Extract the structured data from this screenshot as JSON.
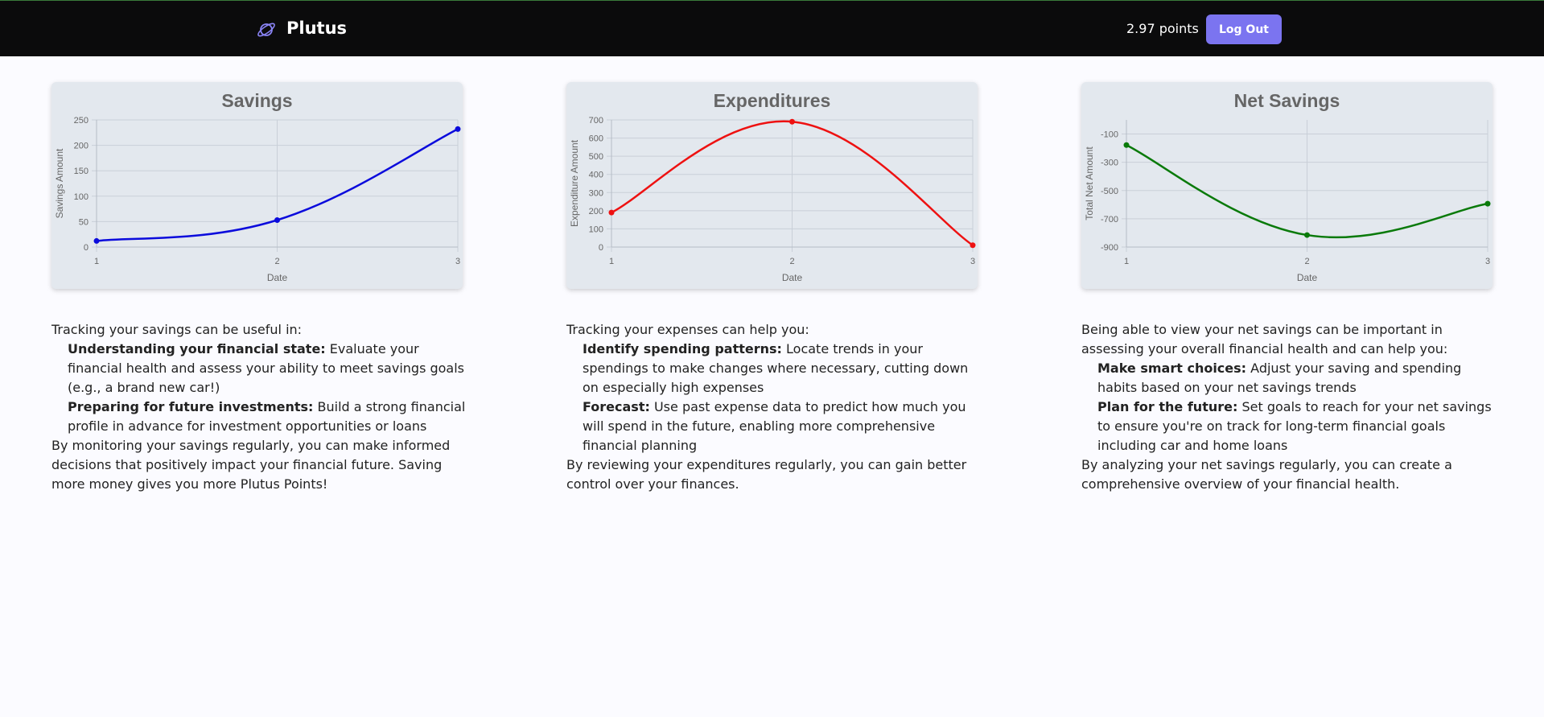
{
  "header": {
    "brand": "Plutus",
    "points": "2.97 points",
    "logout": "Log Out"
  },
  "chart_data": [
    {
      "type": "line",
      "title": "Savings",
      "x_label": "Date",
      "y_label": "Savings Amount",
      "x": [
        1,
        2,
        3
      ],
      "values": [
        12,
        53,
        232
      ],
      "color": "#0b0bdc",
      "xlim": [
        1,
        3
      ],
      "xticks": [
        1,
        2,
        3
      ],
      "ylim": [
        0,
        250
      ],
      "yticks": [
        0,
        50,
        100,
        150,
        200,
        250
      ],
      "grid": true
    },
    {
      "type": "line",
      "title": "Expenditures",
      "x_label": "Date",
      "y_label": "Expenditure Amount",
      "x": [
        1,
        2,
        3
      ],
      "values": [
        190,
        690,
        10
      ],
      "color": "#ee1111",
      "xlim": [
        1,
        3
      ],
      "xticks": [
        1,
        2,
        3
      ],
      "ylim": [
        0,
        700
      ],
      "yticks": [
        0,
        100,
        200,
        300,
        400,
        500,
        600,
        700
      ],
      "grid": true
    },
    {
      "type": "line",
      "title": "Net Savings",
      "x_label": "Date",
      "y_label": "Total Net Amount",
      "x": [
        1,
        2,
        3
      ],
      "values": [
        -178,
        -815,
        -593
      ],
      "color": "#0a7a0a",
      "xlim": [
        1,
        3
      ],
      "xticks": [
        1,
        2,
        3
      ],
      "ylim": [
        -900,
        0
      ],
      "yticks": [
        -900,
        -700,
        -500,
        -300,
        -100
      ],
      "grid": true
    }
  ],
  "sections": [
    {
      "intro": "Tracking your savings can be useful in:",
      "items": [
        {
          "term": "Understanding your financial state:",
          "text": "Evaluate your financial health and assess your ability to meet savings goals (e.g., a brand new car!)"
        },
        {
          "term": "Preparing for future investments:",
          "text": "Build a strong financial profile in advance for investment opportunities or loans"
        }
      ],
      "outro": "By monitoring your savings regularly, you can make informed decisions that positively impact your financial future. Saving more money gives you more Plutus Points!"
    },
    {
      "intro": "Tracking your expenses can help you:",
      "items": [
        {
          "term": "Identify spending patterns:",
          "text": "Locate trends in your spendings to make changes where necessary, cutting down on especially high expenses"
        },
        {
          "term": "Forecast:",
          "text": "Use past expense data to predict how much you will spend in the future, enabling more comprehensive financial planning"
        }
      ],
      "outro": "By reviewing your expenditures regularly, you can gain better control over your finances."
    },
    {
      "intro": "Being able to view your net savings can be important in assessing your overall financial health and can help you:",
      "items": [
        {
          "term": "Make smart choices:",
          "text": "Adjust your saving and spending habits based on your net savings trends"
        },
        {
          "term": "Plan for the future:",
          "text": "Set goals to reach for your net savings to ensure you're on track for long-term financial goals including car and home loans"
        }
      ],
      "outro": "By analyzing your net savings regularly, you can create a comprehensive overview of your financial health."
    }
  ]
}
